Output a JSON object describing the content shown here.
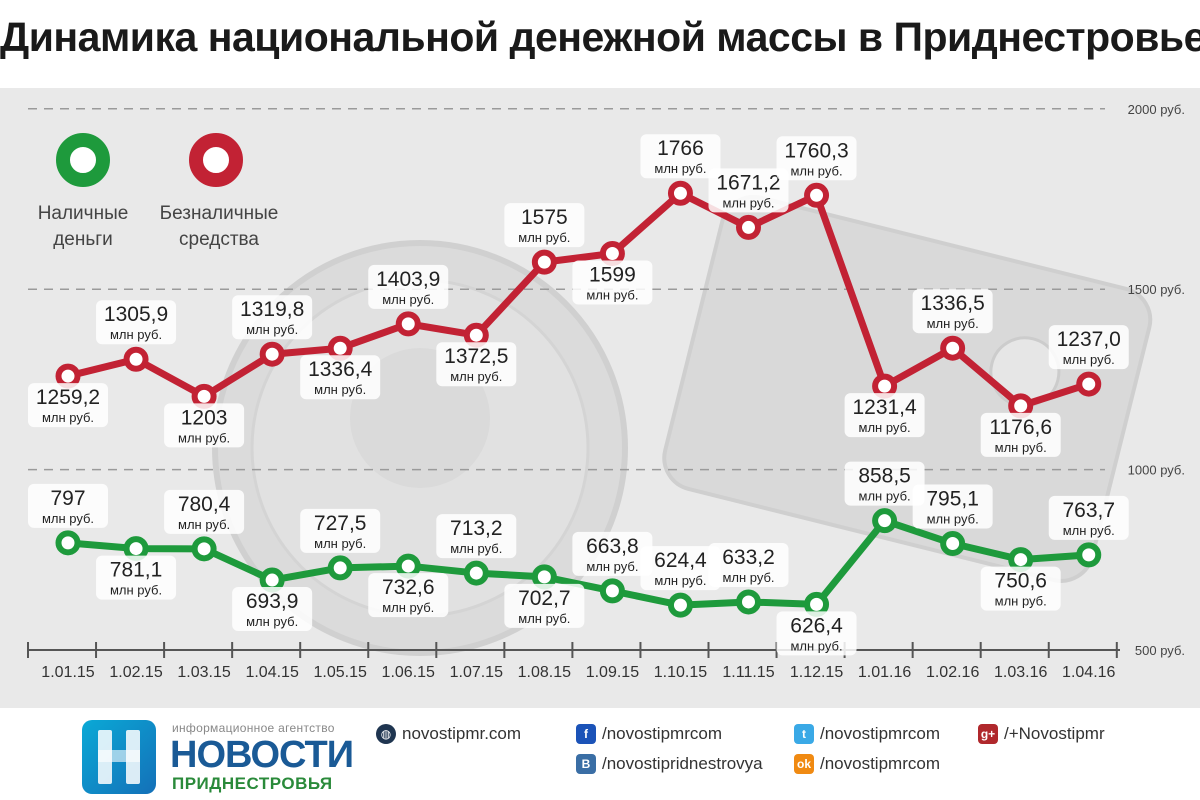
{
  "title": "Динамика национальной денежной массы в Приднестровье",
  "colors": {
    "cash": "#1e9a3c",
    "noncash": "#c22234",
    "panel": "#e9e9e9",
    "grid": "#9a9a9a"
  },
  "chart_data": {
    "type": "line",
    "x": [
      "1.01.15",
      "1.02.15",
      "1.03.15",
      "1.04.15",
      "1.05.15",
      "1.06.15",
      "1.07.15",
      "1.08.15",
      "1.09.15",
      "1.10.15",
      "1.11.15",
      "1.12.15",
      "1.01.16",
      "1.02.16",
      "1.03.16",
      "1.04.16"
    ],
    "y_ticks": [
      {
        "value": 500,
        "label": "500 руб."
      },
      {
        "value": 1000,
        "label": "1000 руб."
      },
      {
        "value": 1500,
        "label": "1500 руб."
      },
      {
        "value": 2000,
        "label": "2000 руб."
      }
    ],
    "ylim": [
      500,
      2000
    ],
    "grid": true,
    "legend_position": "top-left",
    "unit_label": "млн руб.",
    "series": [
      {
        "name": "Безналичные средства",
        "color": "#c22234",
        "values": [
          1259.2,
          1305.9,
          1203,
          1319.8,
          1336.4,
          1403.9,
          1372.5,
          1575,
          1599,
          1766,
          1671.2,
          1760.3,
          1231.4,
          1336.5,
          1176.6,
          1237.0
        ],
        "labels": [
          "1259,2",
          "1305,9",
          "1203",
          "1319,8",
          "1336,4",
          "1403,9",
          "1372,5",
          "1575",
          "1599",
          "1766",
          "1671,2",
          "1760,3",
          "1231,4",
          "1336,5",
          "1176,6",
          "1237,0"
        ],
        "label_pos": [
          "below",
          "above",
          "below",
          "above",
          "below",
          "above",
          "below",
          "above",
          "below",
          "above",
          "above",
          "above",
          "below",
          "above",
          "below",
          "above"
        ]
      },
      {
        "name": "Наличные деньги",
        "color": "#1e9a3c",
        "values": [
          797,
          781.1,
          780.4,
          693.9,
          727.5,
          732.6,
          713.2,
          702.7,
          663.8,
          624.4,
          633.2,
          626.4,
          858.5,
          795.1,
          750.6,
          763.7
        ],
        "labels": [
          "797",
          "781,1",
          "780,4",
          "693,9",
          "727,5",
          "732,6",
          "713,2",
          "702,7",
          "663,8",
          "624,4",
          "633,2",
          "626,4",
          "858,5",
          "795,1",
          "750,6",
          "763,7"
        ],
        "label_pos": [
          "above",
          "below",
          "above",
          "below",
          "above",
          "below",
          "above",
          "below",
          "above",
          "above",
          "above",
          "below",
          "above",
          "above",
          "below",
          "above"
        ]
      }
    ]
  },
  "legend": {
    "cash_line1": "Наличные",
    "cash_line2": "деньги",
    "noncash_line1": "Безналичные",
    "noncash_line2": "средства"
  },
  "footer": {
    "agency_top": "информационное агентство",
    "agency_main": "НОВОСТИ",
    "agency_sub": "ПРИДНЕСТРОВЬЯ",
    "website": "novostipmr.com",
    "facebook": "/novostipmrcom",
    "twitter": "/novostipmrcom",
    "googleplus": "/+Novostipmr",
    "vk": "/novostipridnestrovya",
    "odnoklassniki": "/novostipmrcom",
    "icons": {
      "globe": "globe-icon",
      "facebook": "facebook-icon",
      "twitter": "twitter-icon",
      "googleplus": "googleplus-icon",
      "vk": "vk-icon",
      "odnoklassniki": "odnoklassniki-icon"
    }
  }
}
